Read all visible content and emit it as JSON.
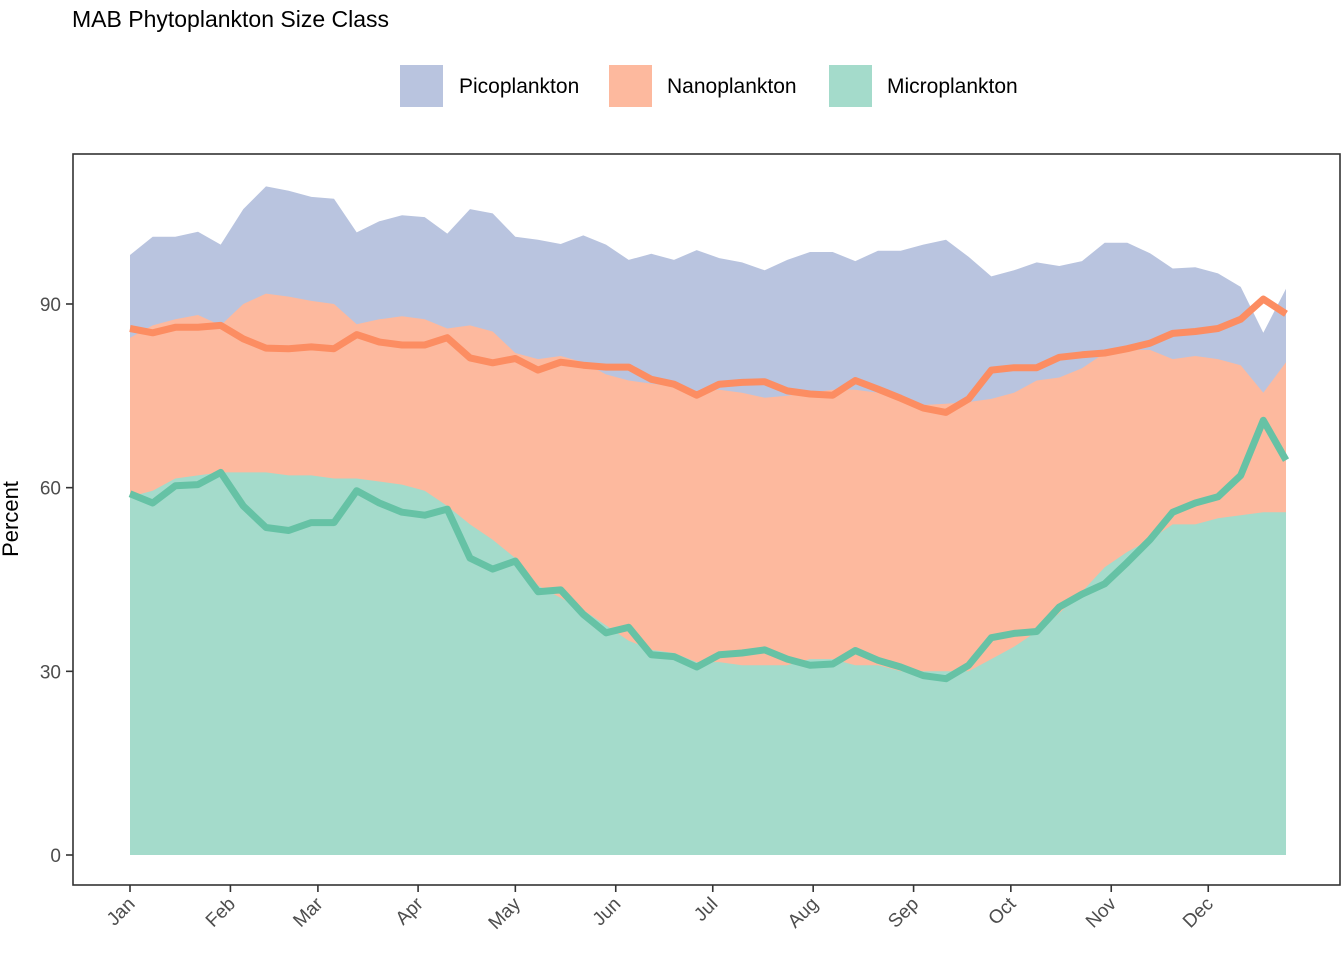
{
  "chart_data": {
    "type": "area",
    "title": "MAB Phytoplankton Size Class",
    "xlabel": "",
    "ylabel": "Percent",
    "ylim": [
      -4.9,
      114.5
    ],
    "yticks": [
      0,
      30,
      60,
      90
    ],
    "legend_placement": "top",
    "grid": false,
    "x_week_range": [
      1,
      52
    ],
    "months": [
      {
        "label": "Jan",
        "week": 1
      },
      {
        "label": "Feb",
        "week": 5.43
      },
      {
        "label": "Mar",
        "week": 9.29
      },
      {
        "label": "Apr",
        "week": 13.71
      },
      {
        "label": "May",
        "week": 18
      },
      {
        "label": "Jun",
        "week": 22.43
      },
      {
        "label": "Jul",
        "week": 26.71
      },
      {
        "label": "Aug",
        "week": 31.14
      },
      {
        "label": "Sep",
        "week": 35.57
      },
      {
        "label": "Oct",
        "week": 39.86
      },
      {
        "label": "Nov",
        "week": 44.29
      },
      {
        "label": "Dec",
        "week": 48.57
      }
    ],
    "weeks": [
      1,
      2,
      3,
      4,
      5,
      6,
      7,
      8,
      9,
      10,
      11,
      12,
      13,
      14,
      15,
      16,
      17,
      18,
      19,
      20,
      21,
      22,
      23,
      24,
      25,
      26,
      27,
      28,
      29,
      30,
      31,
      32,
      33,
      34,
      35,
      36,
      37,
      38,
      39,
      40,
      41,
      42,
      43,
      44,
      45,
      46,
      47,
      48,
      49,
      50,
      51,
      52
    ],
    "series": [
      {
        "name": "Microplankton",
        "color": "#66c2a5",
        "fill": "#a4dbcb",
        "band_values": [
          58.5,
          59.5,
          61.5,
          62,
          62.5,
          62.5,
          62.5,
          62,
          62,
          61.5,
          61.5,
          61,
          60.5,
          59.5,
          57,
          54,
          51.5,
          48.5,
          44,
          42,
          40,
          37.5,
          35,
          33.5,
          33,
          31.5,
          31.5,
          31,
          31,
          31,
          32,
          32,
          31,
          31,
          30,
          30,
          30,
          30,
          32,
          34,
          36.5,
          39.5,
          43,
          47,
          49.5,
          51.5,
          54,
          54,
          55,
          55.5,
          56,
          56
        ],
        "line_values": [
          59,
          57.5,
          60.3,
          60.5,
          62.5,
          57,
          53.5,
          53,
          54.3,
          54.3,
          59.5,
          57.5,
          56,
          55.5,
          56.5,
          48.5,
          46.7,
          48,
          43,
          43.3,
          39.3,
          36.3,
          37.2,
          32.7,
          32.4,
          30.7,
          32.7,
          33,
          33.5,
          32,
          31,
          31.2,
          33.4,
          31.8,
          30.7,
          29.3,
          28.8,
          31,
          35.5,
          36.2,
          36.5,
          40.5,
          42.6,
          44.3,
          47.8,
          51.5,
          56,
          57.5,
          58.5,
          62,
          71,
          64.5
        ]
      },
      {
        "name": "Nanoplankton",
        "color": "#fc8d62",
        "fill": "#fdb99e",
        "band_values": [
          84.5,
          86.5,
          87.5,
          88.2,
          86.5,
          90,
          91.7,
          91.2,
          90.5,
          90,
          86.7,
          87.5,
          88,
          87.5,
          86,
          86.5,
          85.5,
          82,
          81,
          81.5,
          80.5,
          78.5,
          77.5,
          77,
          76.5,
          75.8,
          76,
          75.5,
          74.7,
          75,
          75.5,
          76,
          76,
          75.5,
          74.5,
          73.5,
          73.7,
          74,
          74.5,
          75.5,
          77.5,
          78,
          79.5,
          82,
          82.5,
          82.5,
          81,
          81.5,
          81,
          80,
          75.5,
          80.5
        ],
        "line_values": [
          86,
          85.3,
          86.2,
          86.2,
          86.5,
          84.3,
          82.8,
          82.7,
          83,
          82.7,
          85,
          83.8,
          83.3,
          83.3,
          84.5,
          81.2,
          80.4,
          81.1,
          79.2,
          80.5,
          80,
          79.7,
          79.7,
          77.7,
          76.9,
          75.1,
          76.9,
          77.2,
          77.3,
          75.8,
          75.3,
          75.1,
          77.5,
          76.1,
          74.6,
          73,
          72.3,
          74.5,
          79.2,
          79.6,
          79.6,
          81.3,
          81.7,
          82,
          82.7,
          83.6,
          85.2,
          85.5,
          86,
          87.5,
          90.8,
          88.4
        ]
      },
      {
        "name": "Picoplankton",
        "color": "#8da0cb",
        "fill": "#b9c4df",
        "band_values": [
          98,
          101,
          101,
          101.8,
          99.7,
          105.5,
          109.2,
          108.5,
          107.5,
          107.2,
          101.7,
          103.5,
          104.5,
          104.2,
          101.5,
          105.5,
          104.8,
          101,
          100.5,
          99.8,
          101.2,
          99.7,
          97.2,
          98.2,
          97.2,
          98.8,
          97.5,
          96.8,
          95.5,
          97.2,
          98.5,
          98.5,
          97,
          98.7,
          98.7,
          99.7,
          100.5,
          97.7,
          94.5,
          95.5,
          96.8,
          96.2,
          97,
          100,
          100,
          98.3,
          95.8,
          96,
          95,
          92.8,
          85.3,
          92.5
        ]
      }
    ]
  }
}
